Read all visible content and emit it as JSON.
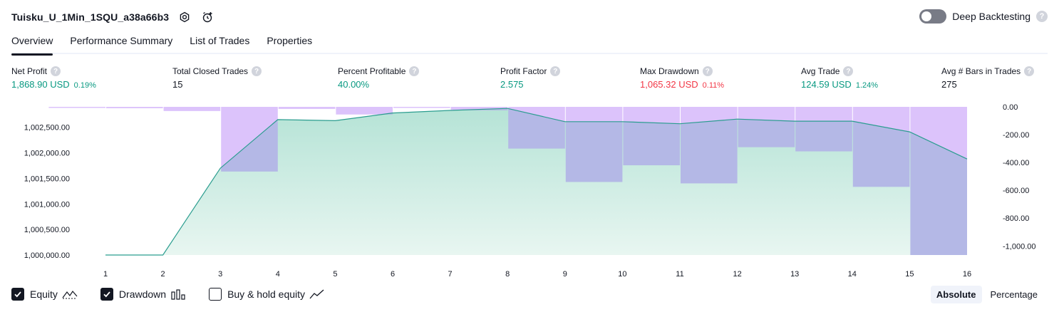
{
  "header": {
    "title": "Tuisku_U_1Min_1SQU_a38a66b3",
    "deep_backtesting_label": "Deep Backtesting",
    "deep_backtesting_on": false,
    "help_glyph": "?"
  },
  "tabs": [
    {
      "label": "Overview",
      "active": true
    },
    {
      "label": "Performance Summary",
      "active": false
    },
    {
      "label": "List of Trades",
      "active": false
    },
    {
      "label": "Properties",
      "active": false
    }
  ],
  "metrics": [
    {
      "label": "Net Profit",
      "value": "1,868.90 USD",
      "pct": "0.19%",
      "color": "green"
    },
    {
      "label": "Total Closed Trades",
      "value": "15",
      "pct": "",
      "color": "dark"
    },
    {
      "label": "Percent Profitable",
      "value": "40.00%",
      "pct": "",
      "color": "green"
    },
    {
      "label": "Profit Factor",
      "value": "2.575",
      "pct": "",
      "color": "green"
    },
    {
      "label": "Max Drawdown",
      "value": "1,065.32 USD",
      "pct": "0.11%",
      "color": "red"
    },
    {
      "label": "Avg Trade",
      "value": "124.59 USD",
      "pct": "1.24%",
      "color": "green"
    },
    {
      "label": "Avg # Bars in Trades",
      "value": "275",
      "pct": "",
      "color": "dark"
    }
  ],
  "chart_data": {
    "type": "area",
    "x": [
      1,
      2,
      3,
      4,
      5,
      6,
      7,
      8,
      9,
      10,
      11,
      12,
      13,
      14,
      15,
      16
    ],
    "series": [
      {
        "name": "Equity",
        "type": "area",
        "axis": "left",
        "values": [
          1000000,
          1000000,
          1001700,
          1002650,
          1002630,
          1002780,
          1002830,
          1002870,
          1002610,
          1002610,
          1002570,
          1002660,
          1002620,
          1002620,
          1002410,
          1001880
        ]
      },
      {
        "name": "Drawdown",
        "type": "bar",
        "axis": "right",
        "values": [
          0,
          -10,
          -30,
          -465,
          -15,
          -55,
          0,
          -25,
          -300,
          -540,
          -420,
          -550,
          -290,
          -320,
          -575,
          -1065
        ]
      }
    ],
    "left_axis": {
      "ticks": [
        "1,000,000.00",
        "1,000,500.00",
        "1,001,000.00",
        "1,001,500.00",
        "1,002,000.00",
        "1,002,500.00"
      ],
      "tick_values": [
        1000000,
        1000500,
        1001000,
        1001500,
        1002000,
        1002500
      ],
      "range": [
        1000000,
        1002900
      ]
    },
    "right_axis": {
      "ticks": [
        "0.00",
        "-200.00",
        "-400.00",
        "-600.00",
        "-800.00",
        "-1,000.00"
      ],
      "tick_values": [
        0,
        -200,
        -400,
        -600,
        -800,
        -1000
      ],
      "range": [
        -1065,
        0
      ]
    },
    "x_ticks": [
      "1",
      "2",
      "3",
      "4",
      "5",
      "6",
      "7",
      "8",
      "9",
      "10",
      "11",
      "12",
      "13",
      "14",
      "15",
      "16"
    ],
    "colors": {
      "equity_line": "#2a9d8f",
      "equity_fill_top": "#b5e3d6",
      "equity_fill_bottom": "#e8f6f1",
      "drawdown_bar": "#dcc3fb",
      "overlap_bar": "#b4b8e6"
    }
  },
  "legend": [
    {
      "label": "Equity",
      "checked": true,
      "icon": "equity-line-icon"
    },
    {
      "label": "Drawdown",
      "checked": true,
      "icon": "bars-icon"
    },
    {
      "label": "Buy & hold equity",
      "checked": false,
      "icon": "trend-line-icon"
    }
  ],
  "mode": {
    "absolute_label": "Absolute",
    "percentage_label": "Percentage",
    "active": "absolute"
  }
}
